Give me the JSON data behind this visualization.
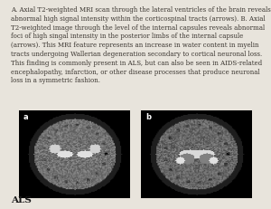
{
  "background_color": "#e8e4dc",
  "title_text": "A. Axial T2-weighted MRI scan through the lateral ventricles of the brain reveals abnormal high signal intensity within the corticospinal tracts (arrows). B. Axial T2-weighted image through the level of the internal capsules reveals abnormal foci of high singal intensity in the posterior limbs of the internal capsule (arrows). This MRI feature represents an increase in water content in myelin tracts undergoing Wallerian degeneration secondary to cortical neuronal loss. This finding is commonly present in ALS, but can also be seen in AIDS-related encephalopathy, infarction, or other disease processes that produce neuronal loss in a symmetric fashion.",
  "label_text": "ALS",
  "text_color": "#3a3530",
  "label_color": "#1a1a1a",
  "text_fontsize": 5.0,
  "label_fontsize": 7.5
}
